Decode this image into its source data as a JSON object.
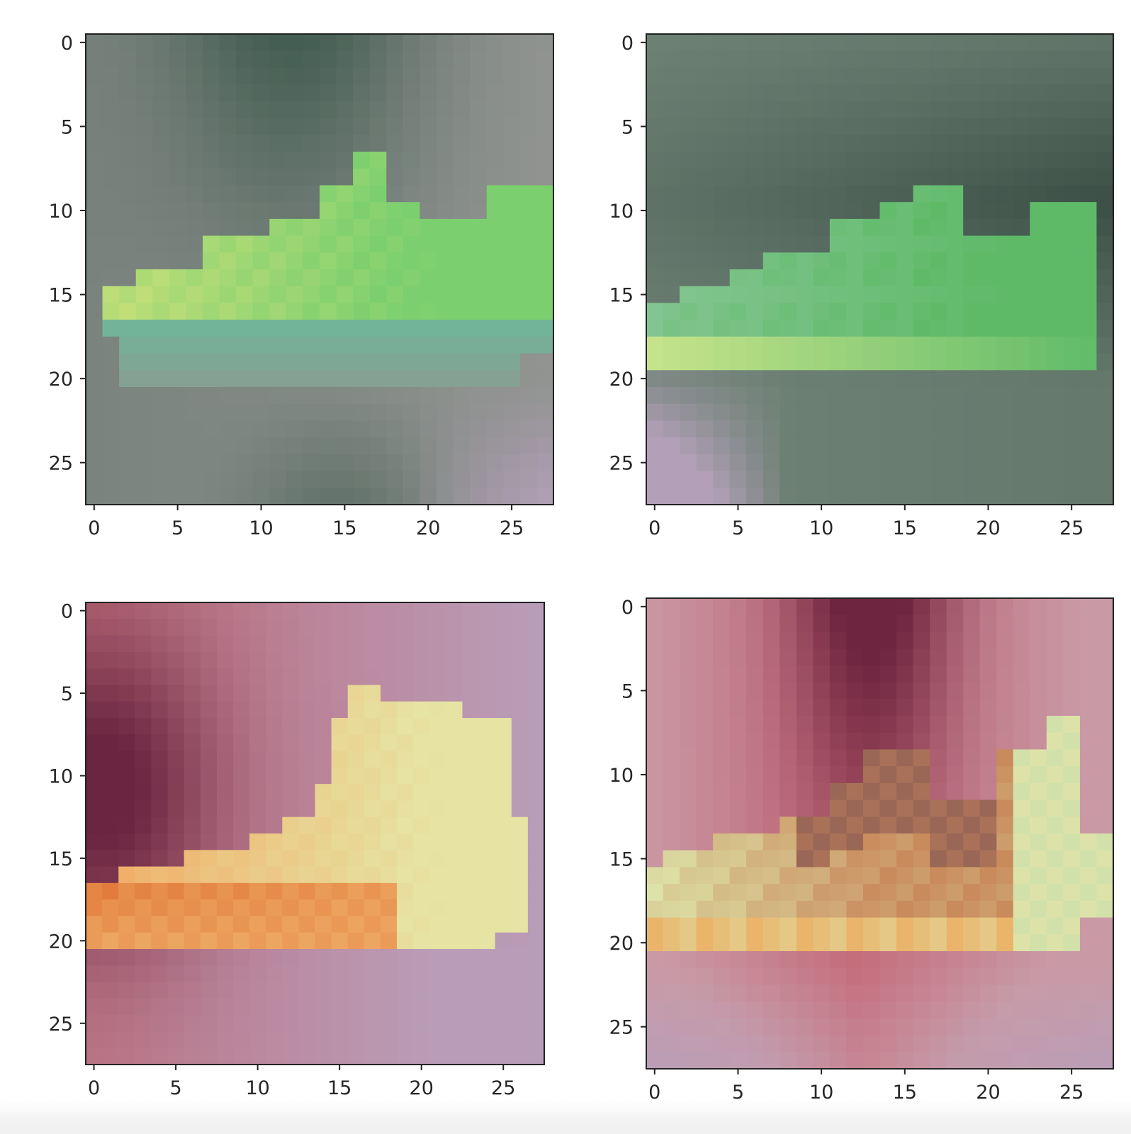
{
  "chart_data": [
    {
      "type": "heatmap",
      "title": "",
      "xlabel": "",
      "ylabel": "",
      "grid": false,
      "xlim": [
        -0.5,
        27.5
      ],
      "ylim": [
        27.5,
        -0.5
      ],
      "xticks": [
        0,
        5,
        10,
        15,
        20,
        25
      ],
      "yticks": [
        0,
        5,
        10,
        15,
        20,
        25
      ],
      "xtick_labels": [
        "0",
        "5",
        "10",
        "15",
        "20",
        "25"
      ],
      "ytick_labels": [
        "0",
        "5",
        "10",
        "15",
        "20",
        "25"
      ],
      "image_size": [
        28,
        28
      ],
      "subject": "low-top sneaker",
      "colors": {
        "background_dark": "#3f5a4e",
        "background_light": "#9a9a98",
        "background_corner": "#b39fb8",
        "shoe_light": "#c8e07a",
        "shoe_mid": "#7ccf6e",
        "shoe_edge": "#72b49a"
      }
    },
    {
      "type": "heatmap",
      "title": "",
      "xlabel": "",
      "ylabel": "",
      "grid": false,
      "xlim": [
        -0.5,
        27.5
      ],
      "ylim": [
        27.5,
        -0.5
      ],
      "xticks": [
        0,
        5,
        10,
        15,
        20,
        25
      ],
      "yticks": [
        0,
        5,
        10,
        15,
        20,
        25
      ],
      "xtick_labels": [
        "0",
        "5",
        "10",
        "15",
        "20",
        "25"
      ],
      "ytick_labels": [
        "0",
        "5",
        "10",
        "15",
        "20",
        "25"
      ],
      "image_size": [
        28,
        28
      ],
      "subject": "low-top sneaker",
      "colors": {
        "background_dark": "#3b4f46",
        "background_light": "#7c8f82",
        "background_corner": "#b3a0b8",
        "shoe_light": "#c4e38a",
        "shoe_mid": "#5fba68",
        "shoe_edge": "#93c9a4"
      }
    },
    {
      "type": "heatmap",
      "title": "",
      "xlabel": "",
      "ylabel": "",
      "grid": false,
      "xlim": [
        -0.5,
        27.5
      ],
      "ylim": [
        27.5,
        -0.5
      ],
      "xticks": [
        0,
        5,
        10,
        15,
        20,
        25
      ],
      "yticks": [
        0,
        5,
        10,
        15,
        20,
        25
      ],
      "xtick_labels": [
        "0",
        "5",
        "10",
        "15",
        "20",
        "25"
      ],
      "ytick_labels": [
        "0",
        "5",
        "10",
        "15",
        "20",
        "25"
      ],
      "image_size": [
        28,
        28
      ],
      "subject": "high-top sneaker",
      "colors": {
        "background_dark": "#6b2540",
        "background_light": "#b99db8",
        "background_corner": "#c05a62",
        "shoe_light": "#e6e3a3",
        "shoe_mid": "#f0b06a",
        "shoe_edge": "#e27c3c"
      }
    },
    {
      "type": "heatmap",
      "title": "",
      "xlabel": "",
      "ylabel": "",
      "grid": false,
      "xlim": [
        -0.5,
        27.5
      ],
      "ylim": [
        27.5,
        -0.5
      ],
      "xticks": [
        0,
        5,
        10,
        15,
        20,
        25
      ],
      "yticks": [
        0,
        5,
        10,
        15,
        20,
        25
      ],
      "xtick_labels": [
        "0",
        "5",
        "10",
        "15",
        "20",
        "25"
      ],
      "ytick_labels": [
        "0",
        "5",
        "10",
        "15",
        "20",
        "25"
      ],
      "image_size": [
        28,
        28
      ],
      "subject": "low-top sneaker",
      "colors": {
        "background_dark": "#6e2540",
        "background_light": "#c99aa6",
        "background_corner": "#b89fb9",
        "shoe_light": "#dde3a8",
        "shoe_mid": "#c98a5c",
        "shoe_edge": "#f0a050"
      }
    }
  ]
}
